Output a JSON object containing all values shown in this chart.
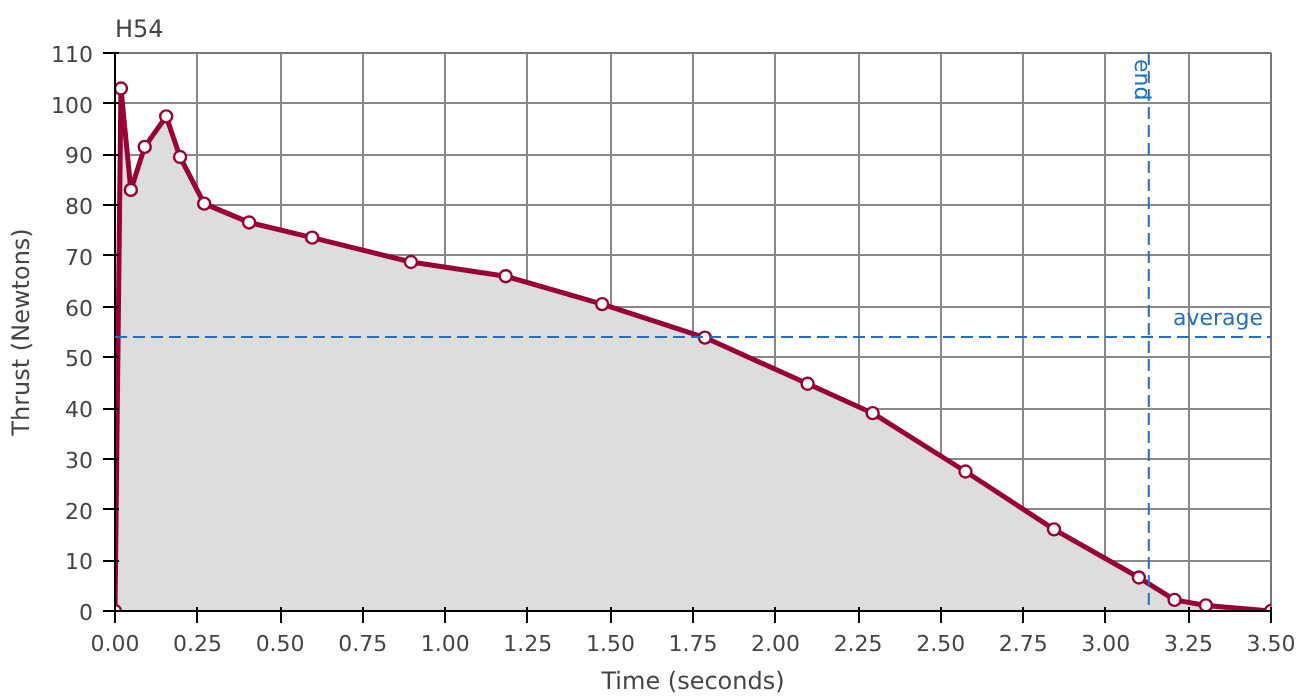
{
  "chart_data": {
    "type": "area",
    "title": "H54",
    "xlabel": "Time (seconds)",
    "ylabel": "Thrust (Newtons)",
    "x": [
      0,
      0.018,
      0.048,
      0.09,
      0.155,
      0.197,
      0.27,
      0.406,
      0.597,
      0.896,
      1.183,
      1.475,
      1.786,
      2.097,
      2.294,
      2.575,
      2.843,
      3.1,
      3.208,
      3.303,
      3.5
    ],
    "values": [
      0,
      103,
      83,
      91.5,
      97.5,
      89.5,
      80.3,
      76.6,
      73.6,
      68.8,
      66,
      60.5,
      53.9,
      44.8,
      39,
      27.5,
      16.1,
      6.6,
      2.2,
      1.1,
      0
    ],
    "color": "#990033",
    "marker": "circle",
    "grid": true,
    "xlim": [
      0,
      3.5
    ],
    "xticks": [
      {
        "value": 0,
        "label": "0.00"
      },
      {
        "value": 0.25,
        "label": "0.25"
      },
      {
        "value": 0.5,
        "label": "0.50"
      },
      {
        "value": 0.75,
        "label": "0.75"
      },
      {
        "value": 1,
        "label": "1.00"
      },
      {
        "value": 1.25,
        "label": "1.25"
      },
      {
        "value": 1.5,
        "label": "1.50"
      },
      {
        "value": 1.75,
        "label": "1.75"
      },
      {
        "value": 2,
        "label": "2.00"
      },
      {
        "value": 2.25,
        "label": "2.25"
      },
      {
        "value": 2.5,
        "label": "2.50"
      },
      {
        "value": 2.75,
        "label": "2.75"
      },
      {
        "value": 3,
        "label": "3.00"
      },
      {
        "value": 3.25,
        "label": "3.25"
      },
      {
        "value": 3.5,
        "label": "3.50"
      }
    ],
    "ylim": [
      0,
      110
    ],
    "yticks": [
      0,
      10,
      20,
      30,
      40,
      50,
      60,
      70,
      80,
      90,
      100,
      110
    ],
    "ref_lines": [
      {
        "axis": "y",
        "value": 54,
        "label": "average",
        "color": "#1f6fc5",
        "line_style": "dashed"
      },
      {
        "axis": "x",
        "value": 3.13,
        "label": "end",
        "color": "#1f6fc5",
        "line_style": "dashed"
      }
    ]
  }
}
